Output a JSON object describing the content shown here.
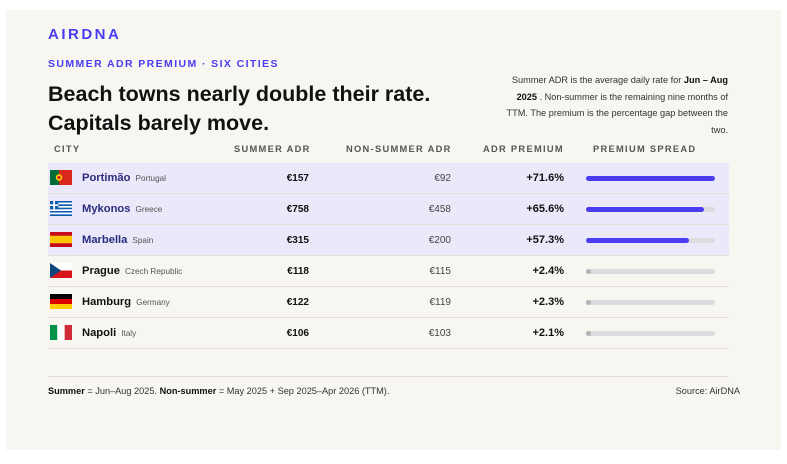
{
  "brand": "AIRDNA",
  "kicker": "SUMMER ADR PREMIUM · SIX CITIES",
  "headline": "Beach towns nearly double their rate. Capitals barely move.",
  "note": {
    "part1": "Summer ADR is the average daily rate for ",
    "bold": "Jun – Aug 2025",
    "part2": " . Non-summer is the remaining nine months of TTM. The premium is the percentage gap between the two."
  },
  "columns": {
    "city": "CITY",
    "summer": "SUMMER ADR",
    "nonsummer": "NON-SUMMER ADR",
    "premium": "ADR PREMIUM",
    "spread": "PREMIUM SPREAD"
  },
  "chart_data": {
    "type": "table",
    "rows": [
      {
        "city": "Portimão",
        "country": "Portugal",
        "flag": "portugal-flag-icon",
        "summer": "€157",
        "nonsummer": "€92",
        "premium": "+71.6%",
        "premium_value": 71.6,
        "highlight": true
      },
      {
        "city": "Mykonos",
        "country": "Greece",
        "flag": "greece-flag-icon",
        "summer": "€758",
        "nonsummer": "€458",
        "premium": "+65.6%",
        "premium_value": 65.6,
        "highlight": true
      },
      {
        "city": "Marbella",
        "country": "Spain",
        "flag": "spain-flag-icon",
        "summer": "€315",
        "nonsummer": "€200",
        "premium": "+57.3%",
        "premium_value": 57.3,
        "highlight": true
      },
      {
        "city": "Prague",
        "country": "Czech Republic",
        "flag": "czech-flag-icon",
        "summer": "€118",
        "nonsummer": "€115",
        "premium": "+2.4%",
        "premium_value": 2.4,
        "highlight": false
      },
      {
        "city": "Hamburg",
        "country": "Germany",
        "flag": "germany-flag-icon",
        "summer": "€122",
        "nonsummer": "€119",
        "premium": "+2.3%",
        "premium_value": 2.3,
        "highlight": false
      },
      {
        "city": "Napoli",
        "country": "Italy",
        "flag": "italy-flag-icon",
        "summer": "€106",
        "nonsummer": "€103",
        "premium": "+2.1%",
        "premium_value": 2.1,
        "highlight": false
      }
    ],
    "spread_max": 71.6,
    "colors": {
      "accent": "#4a3cf0",
      "muted": "#b3b3b6",
      "highlight_bg": "#eae8f9"
    }
  },
  "footer": {
    "summer_label": "Summer",
    "summer_def": " = Jun–Aug 2025. ",
    "nonsummer_label": "Non-summer",
    "nonsummer_def": " = May 2025 + Sep 2025–Apr 2026 (TTM).",
    "source": "Source: AirDNA"
  }
}
